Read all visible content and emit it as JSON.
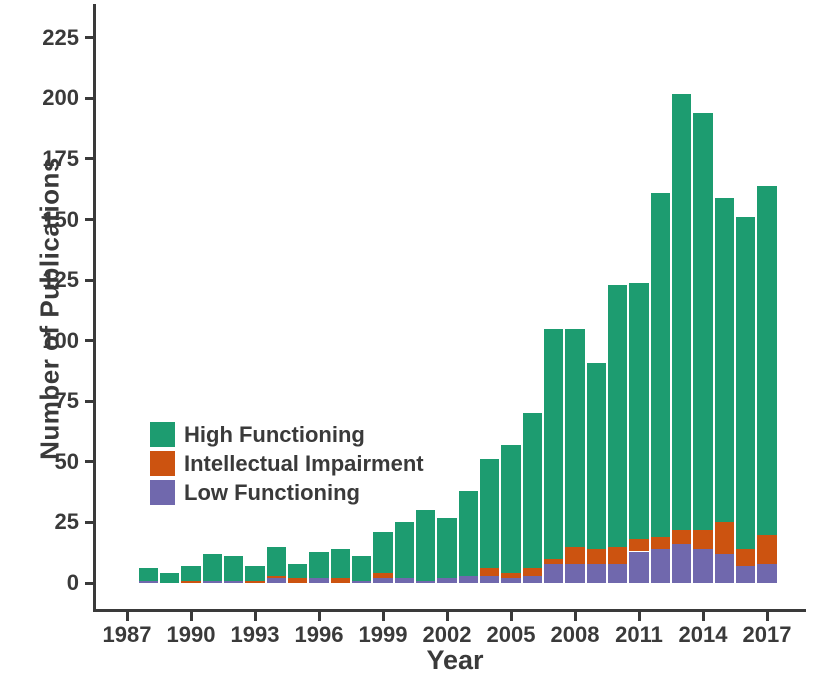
{
  "chart_data": {
    "type": "bar",
    "stacked": true,
    "title": "",
    "xlabel": "Year",
    "ylabel": "Number of Publications",
    "ylim": [
      0,
      235
    ],
    "yticks": [
      0,
      25,
      50,
      75,
      100,
      125,
      150,
      175,
      200,
      225
    ],
    "xticks": [
      1987,
      1990,
      1993,
      1996,
      1999,
      2002,
      2005,
      2008,
      2011,
      2014,
      2017
    ],
    "categories": [
      1988,
      1989,
      1990,
      1991,
      1992,
      1993,
      1994,
      1995,
      1996,
      1997,
      1998,
      1999,
      2000,
      2001,
      2002,
      2003,
      2004,
      2005,
      2006,
      2007,
      2008,
      2009,
      2010,
      2011,
      2012,
      2013,
      2014,
      2015,
      2016,
      2017
    ],
    "series": [
      {
        "name": "High Functioning",
        "color": "#1d9c70",
        "values": [
          5,
          4,
          6,
          11,
          10,
          6,
          12,
          6,
          11,
          12,
          10,
          17,
          23,
          29,
          25,
          35,
          45,
          53,
          64,
          95,
          90,
          77,
          108,
          106,
          142,
          180,
          172,
          134,
          137,
          144
        ]
      },
      {
        "name": "Intellectual Impairment",
        "color": "#cc5310",
        "values": [
          0,
          0,
          1,
          0,
          0,
          1,
          1,
          2,
          0,
          2,
          0,
          2,
          0,
          0,
          0,
          0,
          3,
          2,
          3,
          2,
          7,
          6,
          7,
          5,
          5,
          6,
          8,
          13,
          7,
          12
        ]
      },
      {
        "name": "Low Functioning",
        "color": "#7068ad",
        "values": [
          1,
          0,
          0,
          1,
          1,
          0,
          2,
          0,
          2,
          0,
          1,
          2,
          2,
          1,
          2,
          3,
          3,
          2,
          3,
          8,
          8,
          8,
          8,
          13,
          14,
          16,
          14,
          12,
          7,
          8
        ]
      }
    ],
    "stack_order_bottom_to_top": [
      "Low Functioning",
      "Intellectual Impairment",
      "High Functioning"
    ],
    "totals": [
      6,
      4,
      7,
      12,
      11,
      7,
      15,
      8,
      13,
      14,
      11,
      21,
      25,
      30,
      27,
      38,
      51,
      57,
      70,
      105,
      105,
      91,
      123,
      124,
      161,
      202,
      194,
      159,
      151,
      164
    ],
    "legend_position": "inside-left",
    "grid": false,
    "axis_color": "#3a3a3a",
    "background_color": "#ffffff"
  }
}
